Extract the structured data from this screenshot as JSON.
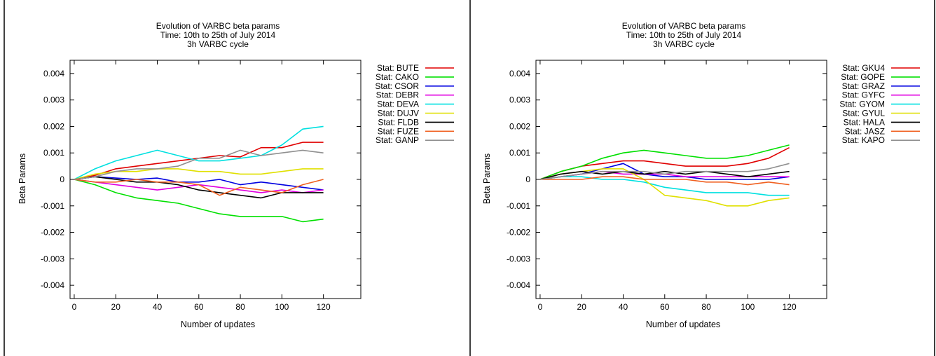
{
  "chart_data": [
    {
      "type": "line",
      "title": "Evolution of VARBC beta params",
      "subtitle": [
        "Time: 10th to 25th of July 2014",
        "3h VARBC cycle"
      ],
      "xlabel": "Number of updates",
      "ylabel": "Beta Params",
      "xlim": [
        -2,
        138
      ],
      "ylim": [
        -0.0045,
        0.0045
      ],
      "x_ticks": [
        "0",
        "20",
        "40",
        "60",
        "80",
        "100",
        "120"
      ],
      "x_tick_values": [
        0,
        20,
        40,
        60,
        80,
        100,
        120
      ],
      "y_ticks": [
        "0.004",
        "0.003",
        "0.002",
        "0.001",
        "0",
        "-0.001",
        "-0.002",
        "-0.003",
        "-0.004"
      ],
      "y_tick_values": [
        0.004,
        0.003,
        0.002,
        0.001,
        0,
        -0.001,
        -0.002,
        -0.003,
        -0.004
      ],
      "legend_position": "top-right",
      "grid": false,
      "x": [
        0,
        10,
        20,
        30,
        40,
        50,
        60,
        70,
        80,
        90,
        100,
        110,
        120
      ],
      "series": [
        {
          "name": "Stat: BUTE",
          "color": "#e00000",
          "values": [
            0,
            0.00015,
            0.0004,
            0.0005,
            0.0006,
            0.0007,
            0.0008,
            0.0009,
            0.00085,
            0.0012,
            0.0012,
            0.0014,
            0.0014
          ]
        },
        {
          "name": "Stat: CAKO",
          "color": "#00e000",
          "values": [
            0,
            -0.0002,
            -0.0005,
            -0.0007,
            -0.0008,
            -0.0009,
            -0.0011,
            -0.0013,
            -0.0014,
            -0.0014,
            -0.0014,
            -0.0016,
            -0.0015
          ]
        },
        {
          "name": "Stat: CSOR",
          "color": "#0000e0",
          "values": [
            0,
            0.0001,
            5e-05,
            0,
            5e-05,
            -0.0001,
            -0.0001,
            0,
            -0.0002,
            -0.0001,
            -0.0002,
            -0.0003,
            -0.0004
          ]
        },
        {
          "name": "Stat: DEBR",
          "color": "#e000e0",
          "values": [
            0,
            -0.0001,
            -0.0002,
            -0.0003,
            -0.0004,
            -0.0003,
            -0.0002,
            -0.0003,
            -0.0004,
            -0.0005,
            -0.0004,
            -0.0005,
            -0.0004
          ]
        },
        {
          "name": "Stat: DEVA",
          "color": "#00e0e0",
          "values": [
            0,
            0.0004,
            0.0007,
            0.0009,
            0.0011,
            0.0009,
            0.0007,
            0.0007,
            0.0008,
            0.0009,
            0.0013,
            0.0019,
            0.002
          ]
        },
        {
          "name": "Stat: DUJV",
          "color": "#e0e000",
          "values": [
            0,
            0.0002,
            0.0003,
            0.0003,
            0.0004,
            0.0004,
            0.0003,
            0.0003,
            0.0002,
            0.0002,
            0.0003,
            0.0004,
            0.0004
          ]
        },
        {
          "name": "Stat: FLDB",
          "color": "#000000",
          "values": [
            0,
            0.0001,
            0,
            -0.0001,
            -0.0001,
            -0.0002,
            -0.0004,
            -0.0005,
            -0.0006,
            -0.0007,
            -0.0005,
            -0.0005,
            -0.0005
          ]
        },
        {
          "name": "Stat: FUZE",
          "color": "#f06020",
          "values": [
            0,
            -0.0001,
            -0.0001,
            0,
            -0.0001,
            -0.0001,
            -0.0002,
            -0.0006,
            -0.0003,
            -0.0004,
            -0.0005,
            -0.0002,
            0
          ]
        },
        {
          "name": "Stat: GANP",
          "color": "#909090",
          "values": [
            0,
            0.0001,
            0.0003,
            0.0004,
            0.0004,
            0.0005,
            0.0008,
            0.0008,
            0.0011,
            0.0009,
            0.001,
            0.0011,
            0.001
          ]
        }
      ]
    },
    {
      "type": "line",
      "title": "Evolution of VARBC beta params",
      "subtitle": [
        "Time: 10th to 25th of July 2014",
        "3h VARBC cycle"
      ],
      "xlabel": "Number of updates",
      "ylabel": "Beta Params",
      "xlim": [
        -2,
        138
      ],
      "ylim": [
        -0.0045,
        0.0045
      ],
      "x_ticks": [
        "0",
        "20",
        "40",
        "60",
        "80",
        "100",
        "120"
      ],
      "x_tick_values": [
        0,
        20,
        40,
        60,
        80,
        100,
        120
      ],
      "y_ticks": [
        "0.004",
        "0.003",
        "0.002",
        "0.001",
        "0",
        "-0.001",
        "-0.002",
        "-0.003",
        "-0.004"
      ],
      "y_tick_values": [
        0.004,
        0.003,
        0.002,
        0.001,
        0,
        -0.001,
        -0.002,
        -0.003,
        -0.004
      ],
      "legend_position": "top-right",
      "grid": false,
      "x": [
        0,
        10,
        20,
        30,
        40,
        50,
        60,
        70,
        80,
        90,
        100,
        110,
        120
      ],
      "series": [
        {
          "name": "Stat: GKU4",
          "color": "#e00000",
          "values": [
            0,
            0.0003,
            0.0005,
            0.0006,
            0.0007,
            0.0007,
            0.0006,
            0.0005,
            0.0005,
            0.0005,
            0.0006,
            0.0008,
            0.0012
          ]
        },
        {
          "name": "Stat: GOPE",
          "color": "#00e000",
          "values": [
            0,
            0.0003,
            0.0005,
            0.0008,
            0.001,
            0.0011,
            0.001,
            0.0009,
            0.0008,
            0.0008,
            0.0009,
            0.0011,
            0.0013
          ]
        },
        {
          "name": "Stat: GRAZ",
          "color": "#0000e0",
          "values": [
            0,
            0.0001,
            0.0002,
            0.0004,
            0.0006,
            0.0002,
            0.0001,
            0.0001,
            0,
            0,
            0,
            0,
            0.0001
          ]
        },
        {
          "name": "Stat: GYFC",
          "color": "#e000e0",
          "values": [
            0,
            0.0001,
            0.0002,
            0.0003,
            0.0002,
            0.0002,
            0.0002,
            0.0001,
            0.0001,
            0.0001,
            0.0001,
            0.0001,
            0.0001
          ]
        },
        {
          "name": "Stat: GYOM",
          "color": "#00e0e0",
          "values": [
            0,
            0.0001,
            0.0001,
            0,
            0,
            -0.0001,
            -0.0003,
            -0.0004,
            -0.0005,
            -0.0005,
            -0.0005,
            -0.0006,
            -0.0006
          ]
        },
        {
          "name": "Stat: GYUL",
          "color": "#e0e000",
          "values": [
            0,
            0.0002,
            0.0003,
            0.0004,
            0.0004,
            0,
            -0.0006,
            -0.0007,
            -0.0008,
            -0.001,
            -0.001,
            -0.0008,
            -0.0007
          ]
        },
        {
          "name": "Stat: HALA",
          "color": "#000000",
          "values": [
            0,
            0.0002,
            0.0003,
            0.0002,
            0.0003,
            0.0002,
            0.0003,
            0.0002,
            0.0003,
            0.0002,
            0.0001,
            0.0002,
            0.0003
          ]
        },
        {
          "name": "Stat: JASZ",
          "color": "#f06020",
          "values": [
            0,
            0,
            0,
            0.0001,
            0.0001,
            0,
            0,
            0,
            -0.0001,
            -0.0001,
            -0.0002,
            -0.0001,
            -0.0002
          ]
        },
        {
          "name": "Stat: KAPO",
          "color": "#909090",
          "values": [
            0,
            0.0001,
            0.0002,
            0.0003,
            0.0003,
            0.0003,
            0.0002,
            0.0003,
            0.0003,
            0.0003,
            0.0003,
            0.0004,
            0.0006
          ]
        }
      ]
    }
  ]
}
